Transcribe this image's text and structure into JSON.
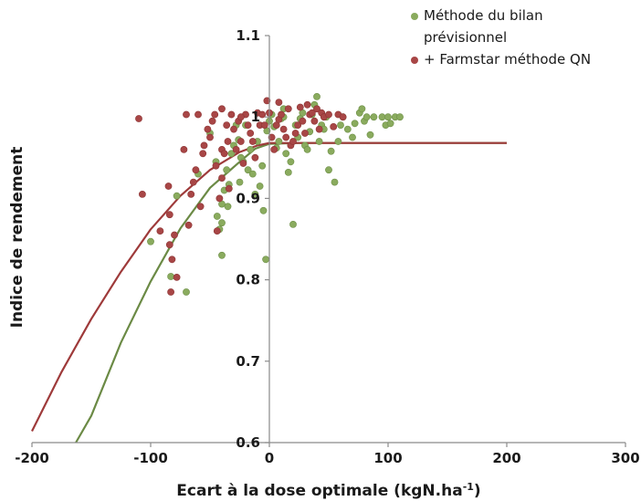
{
  "chart_data": {
    "type": "scatter",
    "title": "",
    "xlabel": "Ecart à la dose optimale (kgN.ha",
    "xlabel_sup": "-1",
    "xlabel_close": ")",
    "ylabel": "Indice de rendement",
    "xlim": [
      -200,
      300
    ],
    "ylim": [
      0.6,
      1.1
    ],
    "x_ticks": [
      -200,
      -100,
      0,
      100,
      200,
      300
    ],
    "x_tick_labels": [
      "-200",
      "-100",
      "0",
      "100",
      "200",
      "300"
    ],
    "y_ticks": [
      0.6,
      0.7,
      0.8,
      0.9,
      1.0,
      1.1
    ],
    "y_tick_labels": [
      "0.6",
      "0.7",
      "0.8",
      "0.9",
      "1",
      "1.1"
    ],
    "grid": false,
    "legend_position": "top-right",
    "series": [
      {
        "name": "Méthode du bilan prévisionnel",
        "legend_lines": [
          "Méthode du bilan",
          "prévisionnel"
        ],
        "color": "#8aab5e",
        "points": [
          [
            -100,
            0.847
          ],
          [
            -83,
            0.804
          ],
          [
            -78,
            0.903
          ],
          [
            -70,
            0.785
          ],
          [
            -60,
            0.93
          ],
          [
            -42,
            0.862
          ],
          [
            -40,
            0.893
          ],
          [
            -40,
            0.87
          ],
          [
            -40,
            0.83
          ],
          [
            -38,
            0.91
          ],
          [
            -36,
            0.935
          ],
          [
            -34,
            0.917
          ],
          [
            -32,
            0.955
          ],
          [
            -30,
            0.965
          ],
          [
            -28,
            0.99
          ],
          [
            -26,
            0.972
          ],
          [
            -24,
            0.95
          ],
          [
            -22,
            0.945
          ],
          [
            -20,
            0.99
          ],
          [
            -18,
            0.935
          ],
          [
            -16,
            0.96
          ],
          [
            -14,
            0.93
          ],
          [
            -12,
            0.905
          ],
          [
            -10,
            0.97
          ],
          [
            -8,
            0.915
          ],
          [
            -6,
            0.94
          ],
          [
            -5,
            0.885
          ],
          [
            -3,
            0.825
          ],
          [
            -2,
            0.983
          ],
          [
            0,
            0.995
          ],
          [
            2,
            1.003
          ],
          [
            4,
            0.988
          ],
          [
            6,
            0.962
          ],
          [
            8,
            0.97
          ],
          [
            10,
            0.998
          ],
          [
            12,
            1.0
          ],
          [
            14,
            0.955
          ],
          [
            16,
            0.932
          ],
          [
            18,
            0.945
          ],
          [
            20,
            0.868
          ],
          [
            22,
            0.99
          ],
          [
            24,
            0.975
          ],
          [
            26,
            0.998
          ],
          [
            28,
            1.005
          ],
          [
            30,
            0.965
          ],
          [
            32,
            0.96
          ],
          [
            34,
            0.982
          ],
          [
            36,
            1.003
          ],
          [
            38,
            1.015
          ],
          [
            40,
            1.025
          ],
          [
            42,
            0.97
          ],
          [
            44,
            0.99
          ],
          [
            46,
            0.985
          ],
          [
            48,
            1.0
          ],
          [
            50,
            0.935
          ],
          [
            52,
            0.958
          ],
          [
            55,
            0.92
          ],
          [
            58,
            0.97
          ],
          [
            60,
            0.99
          ],
          [
            62,
            1.0
          ],
          [
            66,
            0.985
          ],
          [
            70,
            0.975
          ],
          [
            72,
            0.992
          ],
          [
            76,
            1.005
          ],
          [
            78,
            1.01
          ],
          [
            80,
            0.995
          ],
          [
            82,
            1.0
          ],
          [
            85,
            0.978
          ],
          [
            88,
            1.0
          ],
          [
            95,
            1.0
          ],
          [
            98,
            0.99
          ],
          [
            100,
            1.0
          ],
          [
            102,
            0.992
          ],
          [
            106,
            1.0
          ],
          [
            110,
            1.0
          ],
          [
            -45,
            0.945
          ],
          [
            -35,
            0.89
          ],
          [
            -25,
            0.92
          ],
          [
            12,
            1.01
          ],
          [
            -50,
            0.98
          ],
          [
            -44,
            0.878
          ]
        ]
      },
      {
        "name": "+ Farmstar  méthode QN",
        "legend_lines": [
          "+ Farmstar  méthode QN"
        ],
        "color": "#a84646",
        "points": [
          [
            -110,
            0.998
          ],
          [
            -107,
            0.905
          ],
          [
            -85,
            0.915
          ],
          [
            -84,
            0.88
          ],
          [
            -84,
            0.843
          ],
          [
            -83,
            0.785
          ],
          [
            -82,
            0.825
          ],
          [
            -80,
            0.855
          ],
          [
            -78,
            0.803
          ],
          [
            -72,
            0.96
          ],
          [
            -70,
            1.003
          ],
          [
            -68,
            0.867
          ],
          [
            -64,
            0.92
          ],
          [
            -62,
            0.935
          ],
          [
            -60,
            1.003
          ],
          [
            -58,
            0.89
          ],
          [
            -55,
            0.965
          ],
          [
            -52,
            0.985
          ],
          [
            -50,
            0.975
          ],
          [
            -48,
            0.995
          ],
          [
            -46,
            1.003
          ],
          [
            -45,
            0.94
          ],
          [
            -44,
            0.86
          ],
          [
            -42,
            0.9
          ],
          [
            -40,
            1.01
          ],
          [
            -40,
            0.96
          ],
          [
            -40,
            0.925
          ],
          [
            -38,
            0.955
          ],
          [
            -36,
            0.99
          ],
          [
            -35,
            0.97
          ],
          [
            -34,
            0.912
          ],
          [
            -32,
            1.003
          ],
          [
            -30,
            0.985
          ],
          [
            -28,
            0.96
          ],
          [
            -26,
            0.995
          ],
          [
            -24,
            0.97
          ],
          [
            -22,
            0.943
          ],
          [
            -20,
            1.003
          ],
          [
            -18,
            0.99
          ],
          [
            -16,
            0.98
          ],
          [
            -14,
            0.97
          ],
          [
            -12,
            0.95
          ],
          [
            -10,
            1.005
          ],
          [
            -8,
            0.99
          ],
          [
            -6,
            1.003
          ],
          [
            -4,
            0.99
          ],
          [
            -2,
            1.02
          ],
          [
            0,
            1.005
          ],
          [
            2,
            0.975
          ],
          [
            4,
            0.96
          ],
          [
            6,
            0.99
          ],
          [
            8,
            0.997
          ],
          [
            10,
            1.003
          ],
          [
            12,
            0.985
          ],
          [
            14,
            0.975
          ],
          [
            16,
            1.01
          ],
          [
            18,
            0.965
          ],
          [
            20,
            0.97
          ],
          [
            22,
            0.98
          ],
          [
            24,
            0.99
          ],
          [
            26,
            1.012
          ],
          [
            28,
            0.995
          ],
          [
            30,
            0.98
          ],
          [
            32,
            1.015
          ],
          [
            34,
            1.003
          ],
          [
            36,
            1.005
          ],
          [
            38,
            0.995
          ],
          [
            40,
            1.01
          ],
          [
            42,
            0.985
          ],
          [
            44,
            1.005
          ],
          [
            46,
            1.0
          ],
          [
            50,
            1.003
          ],
          [
            54,
            0.988
          ],
          [
            58,
            1.003
          ],
          [
            62,
            1.0
          ],
          [
            -92,
            0.86
          ],
          [
            -66,
            0.905
          ],
          [
            -56,
            0.955
          ],
          [
            -24,
            1.0
          ],
          [
            8,
            1.018
          ]
        ]
      }
    ],
    "curves": [
      {
        "name": "fit-bilan",
        "color": "#6b8a45",
        "points": [
          [
            -163,
            0.6
          ],
          [
            -150,
            0.633
          ],
          [
            -125,
            0.723
          ],
          [
            -100,
            0.798
          ],
          [
            -75,
            0.863
          ],
          [
            -50,
            0.913
          ],
          [
            -25,
            0.945
          ],
          [
            -12,
            0.961
          ],
          [
            0,
            0.967
          ],
          [
            25,
            0.968
          ],
          [
            50,
            0.968
          ],
          [
            100,
            0.968
          ],
          [
            150,
            0.968
          ],
          [
            200,
            0.968
          ]
        ]
      },
      {
        "name": "fit-farmstar",
        "color": "#9e3a3a",
        "points": [
          [
            -200,
            0.614
          ],
          [
            -175,
            0.687
          ],
          [
            -150,
            0.752
          ],
          [
            -125,
            0.81
          ],
          [
            -100,
            0.862
          ],
          [
            -75,
            0.903
          ],
          [
            -50,
            0.935
          ],
          [
            -25,
            0.957
          ],
          [
            -10,
            0.965
          ],
          [
            0,
            0.968
          ],
          [
            25,
            0.968
          ],
          [
            50,
            0.968
          ],
          [
            100,
            0.968
          ],
          [
            150,
            0.968
          ],
          [
            200,
            0.968
          ]
        ]
      }
    ]
  }
}
